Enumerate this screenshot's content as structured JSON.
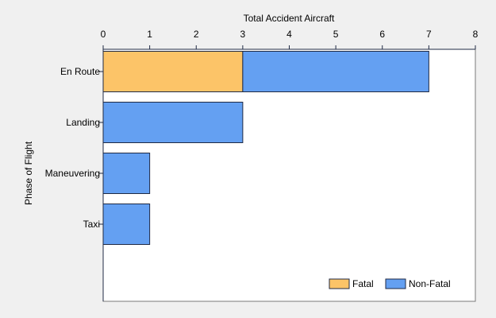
{
  "chart_data": {
    "type": "bar",
    "orientation": "horizontal",
    "stacked": true,
    "xlabel": "Total Accident Aircraft",
    "ylabel": "Phase of Flight",
    "xlim": [
      0,
      8
    ],
    "xticks": [
      0,
      1,
      2,
      3,
      4,
      5,
      6,
      7,
      8
    ],
    "x_axis_position": "top",
    "grid": false,
    "legend_position": "bottom-right",
    "categories": [
      "En Route",
      "Landing",
      "Maneuvering",
      "Taxi"
    ],
    "series": [
      {
        "name": "Fatal",
        "color": "#fcc468",
        "values": [
          3,
          0,
          0,
          0
        ]
      },
      {
        "name": "Non-Fatal",
        "color": "#64a0f2",
        "values": [
          4,
          3,
          1,
          1
        ]
      }
    ]
  }
}
